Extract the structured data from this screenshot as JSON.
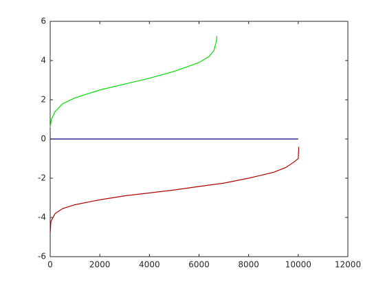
{
  "chart_data": {
    "type": "line",
    "xlim": [
      0,
      12000
    ],
    "xticks": [
      0,
      2000,
      4000,
      6000,
      8000,
      10000,
      12000
    ],
    "ylim": [
      -6,
      6
    ],
    "yticks": [
      -6,
      -4,
      -2,
      0,
      2,
      4,
      6
    ],
    "grid": false,
    "series": [
      {
        "color": "#00dd00",
        "x": [
          0,
          50,
          200,
          500,
          1000,
          2000,
          3000,
          4000,
          5000,
          6000,
          6400,
          6600,
          6700,
          6720
        ],
        "values": [
          0.6,
          1.0,
          1.4,
          1.8,
          2.1,
          2.5,
          2.8,
          3.1,
          3.45,
          3.9,
          4.2,
          4.5,
          5.0,
          5.25
        ]
      },
      {
        "color": "#000080",
        "x": [
          0,
          10000
        ],
        "values": [
          0,
          0
        ]
      },
      {
        "color": "#b00000",
        "x": [
          0,
          30,
          200,
          500,
          1000,
          2000,
          3000,
          4000,
          5000,
          6000,
          7000,
          8000,
          9000,
          9500,
          9800,
          10000,
          10020
        ],
        "values": [
          -4.8,
          -4.2,
          -3.8,
          -3.55,
          -3.35,
          -3.1,
          -2.9,
          -2.75,
          -2.6,
          -2.42,
          -2.25,
          -2.0,
          -1.7,
          -1.45,
          -1.2,
          -1.0,
          -0.4
        ]
      }
    ]
  }
}
